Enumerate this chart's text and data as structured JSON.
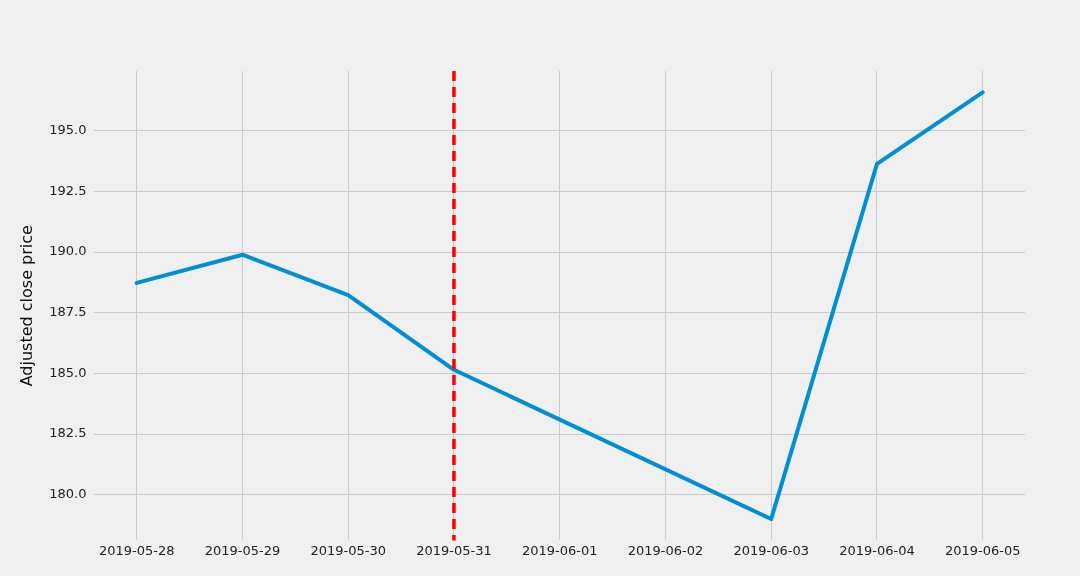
{
  "chart_data": {
    "type": "line",
    "ylabel": "Adjusted close price",
    "x": [
      "2019-05-28",
      "2019-05-29",
      "2019-05-30",
      "2019-05-31",
      "2019-06-03",
      "2019-06-04",
      "2019-06-05"
    ],
    "series": [
      {
        "color": "#008fd5",
        "values": [
          188.73,
          189.89,
          188.23,
          185.15,
          179.0,
          193.63,
          196.58
        ]
      }
    ],
    "xlim": [
      "2019-05-27T14:24",
      "2019-06-05T09:36"
    ],
    "xticks": [
      "2019-05-28",
      "2019-05-29",
      "2019-05-30",
      "2019-05-31",
      "2019-06-01",
      "2019-06-02",
      "2019-06-03",
      "2019-06-04",
      "2019-06-05"
    ],
    "ylim": [
      178.12,
      197.46
    ],
    "yticks": [
      {
        "value": 180,
        "label": "180.0"
      },
      {
        "value": 182.5,
        "label": "182.5"
      },
      {
        "value": 185,
        "label": "185.0"
      },
      {
        "value": 187.5,
        "label": "187.5"
      },
      {
        "value": 190,
        "label": "190.0"
      },
      {
        "value": 192.5,
        "label": "192.5"
      },
      {
        "value": 195,
        "label": "195.0"
      }
    ],
    "grid": true,
    "marker": "none",
    "line_style": "solid",
    "ref_lines": [
      {
        "axis": "x",
        "value": "2019-05-31",
        "color": "#ff0000",
        "line_style": "dashed"
      }
    ]
  }
}
